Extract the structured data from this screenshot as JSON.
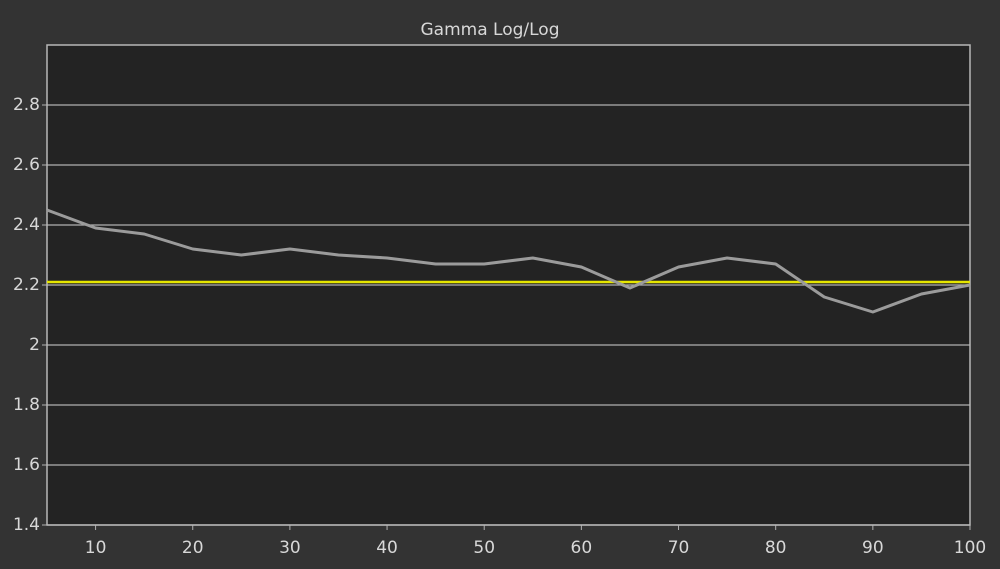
{
  "chart_data": {
    "type": "line",
    "title": "Gamma Log/Log",
    "x": [
      5,
      10,
      15,
      20,
      25,
      30,
      35,
      40,
      45,
      50,
      55,
      60,
      65,
      70,
      75,
      80,
      85,
      90,
      95,
      100
    ],
    "series": [
      {
        "color": "#9b9b9b",
        "values": [
          2.45,
          2.39,
          2.37,
          2.32,
          2.3,
          2.32,
          2.3,
          2.29,
          2.27,
          2.27,
          2.29,
          2.26,
          2.19,
          2.26,
          2.29,
          2.27,
          2.16,
          2.11,
          2.17,
          2.2
        ]
      }
    ],
    "reference_line": {
      "value": 2.21,
      "color": "#e6e600"
    },
    "xlim": [
      5,
      100
    ],
    "xticks": [
      10,
      20,
      30,
      40,
      50,
      60,
      70,
      80,
      90,
      100
    ],
    "ylim": [
      1.4,
      3.0
    ],
    "yticks": [
      1.4,
      1.6,
      1.8,
      2,
      2.2,
      2.4,
      2.6,
      2.8
    ],
    "grid": true
  }
}
